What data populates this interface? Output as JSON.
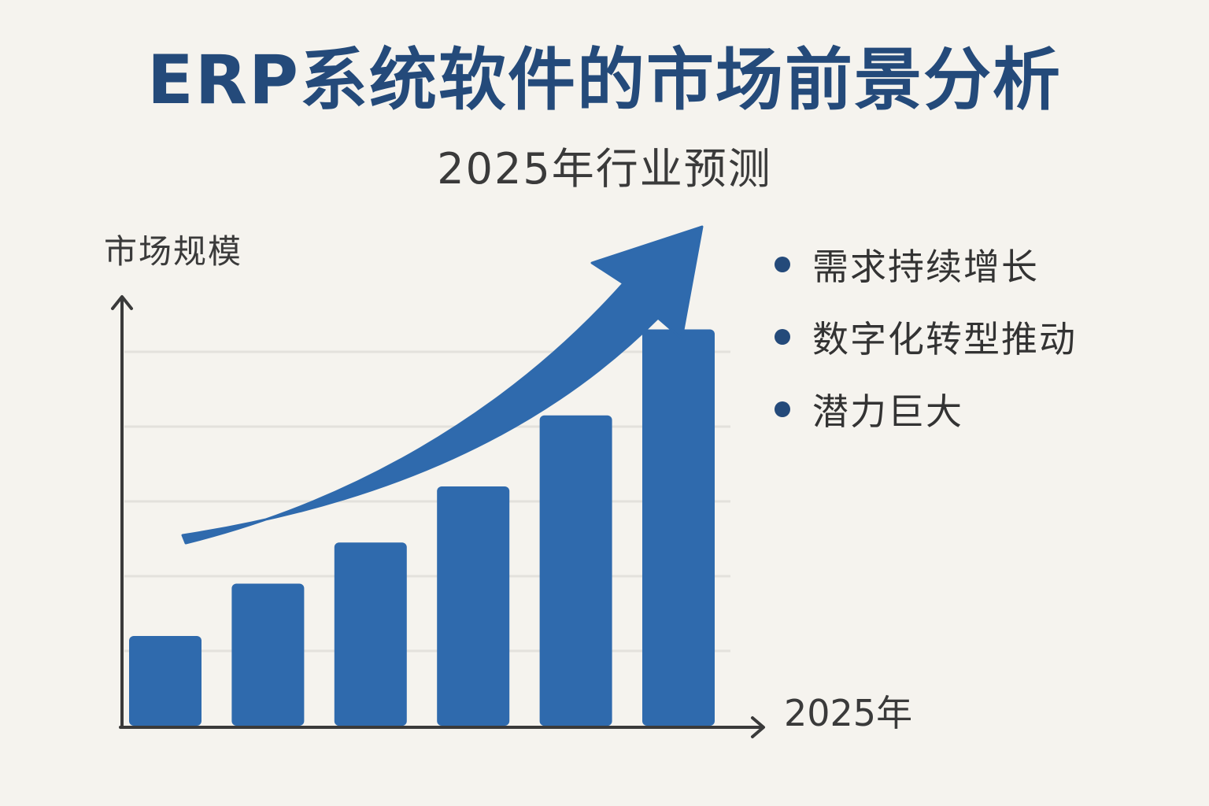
{
  "title": "ERP系统软件的市场前景分析",
  "subtitle": "2025年行业预测",
  "bullets": [
    {
      "label": "需求持续增长"
    },
    {
      "label": "数字化转型推动"
    },
    {
      "label": "潜力巨大"
    }
  ],
  "colors": {
    "title": "#244a7a",
    "bar": "#2f6aad",
    "arrow": "#2f6aad",
    "axis": "#3a3a3a",
    "grid": "#e3e1dc",
    "bullet_dot": "#244a7a",
    "background": "#f5f3ee"
  },
  "chart_data": {
    "type": "bar",
    "ylabel": "市场规模",
    "xlabel": "2025年",
    "categories": [
      "",
      "",
      "",
      "",
      "",
      ""
    ],
    "values": [
      1.2,
      1.9,
      2.45,
      3.2,
      4.15,
      5.3
    ],
    "ylim": [
      0,
      6
    ],
    "grid": true,
    "trend_arrow": "upward",
    "axis_ticks_labeled": false
  }
}
